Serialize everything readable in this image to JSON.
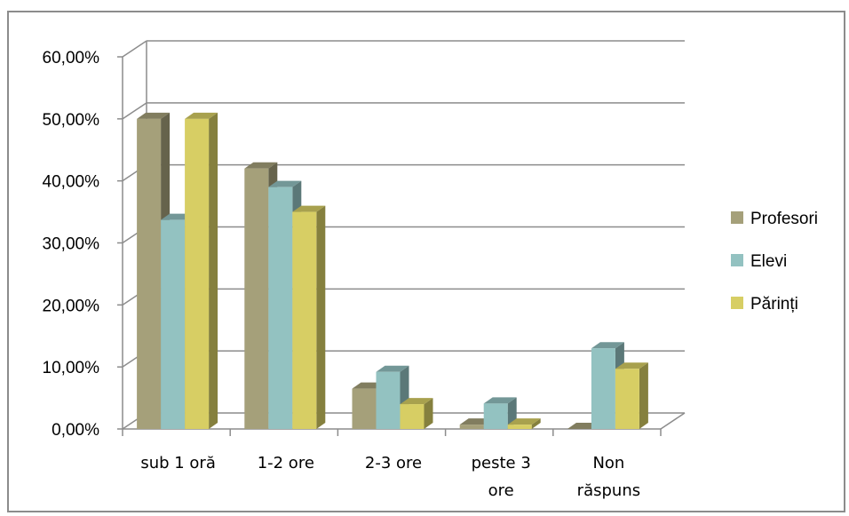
{
  "chart_data": {
    "type": "bar",
    "bar_style": "3d-clustered-column",
    "categories": [
      [
        "sub 1 oră"
      ],
      [
        "1-2 ore"
      ],
      [
        "2-3 ore"
      ],
      [
        "peste 3",
        "ore"
      ],
      [
        "Non",
        "răspuns"
      ]
    ],
    "series": [
      {
        "name": "Profesori",
        "color": "#a5a07a",
        "values": [
          0.5,
          0.42,
          0.065,
          0.007,
          0.0
        ]
      },
      {
        "name": "Elevi",
        "color": "#93c2c1",
        "values": [
          0.337,
          0.39,
          0.092,
          0.041,
          0.13
        ]
      },
      {
        "name": "Părinți",
        "color": "#d7ce64",
        "values": [
          0.5,
          0.35,
          0.04,
          0.007,
          0.097
        ]
      }
    ],
    "ylim": [
      0,
      0.6
    ],
    "yticks": [
      "0,00%",
      "10,00%",
      "20,00%",
      "30,00%",
      "40,00%",
      "50,00%",
      "60,00%"
    ],
    "grid": true,
    "legend": "right"
  }
}
